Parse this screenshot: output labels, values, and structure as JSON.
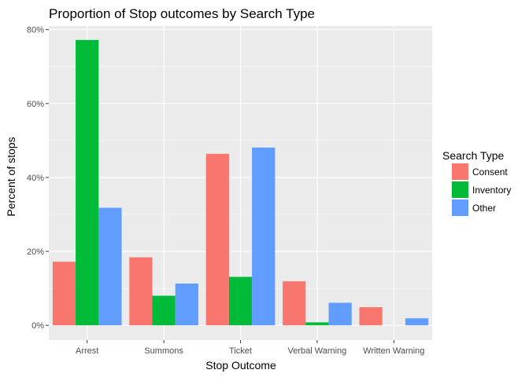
{
  "chart_data": {
    "type": "bar",
    "title": "Proportion of Stop outcomes by Search Type",
    "xlabel": "Stop Outcome",
    "ylabel": "Percent of stops",
    "categories": [
      "Arrest",
      "Summons",
      "Ticket",
      "Verbal Warning",
      "Written Warning"
    ],
    "series": [
      {
        "name": "Consent",
        "color": "#F8766D",
        "values": [
          17.2,
          18.4,
          46.4,
          11.9,
          4.9
        ]
      },
      {
        "name": "Inventory",
        "color": "#00BA38",
        "values": [
          77.2,
          8.0,
          13.1,
          0.8,
          0.0
        ]
      },
      {
        "name": "Other",
        "color": "#619CFF",
        "values": [
          31.8,
          11.3,
          48.1,
          6.1,
          1.9
        ]
      }
    ],
    "ylim": [
      -4,
      81
    ],
    "yticks": [
      0,
      20,
      40,
      60,
      80
    ],
    "ytick_labels": [
      "0%",
      "20%",
      "40%",
      "60%",
      "80%"
    ],
    "grid": true,
    "legend": {
      "title": "Search Type",
      "position": "right"
    },
    "panel_color": "#EBEBEB"
  }
}
